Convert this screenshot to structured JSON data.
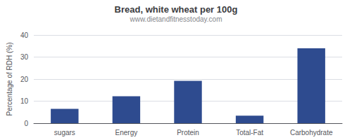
{
  "chart_data": {
    "type": "bar",
    "title": "Bread, white wheat per 100g",
    "subtitle": "www.dietandfitnesstoday.com",
    "categories": [
      "sugars",
      "Energy",
      "Protein",
      "Total-Fat",
      "Carbohydrate"
    ],
    "values": [
      6.5,
      12.2,
      19.2,
      3.4,
      34.0
    ],
    "color": "#2e4b8f",
    "ylabel": "Percentage of RDH (%)",
    "ylim": [
      0,
      40
    ],
    "yticks": [
      0,
      10,
      20,
      30,
      40
    ],
    "grid": true
  }
}
